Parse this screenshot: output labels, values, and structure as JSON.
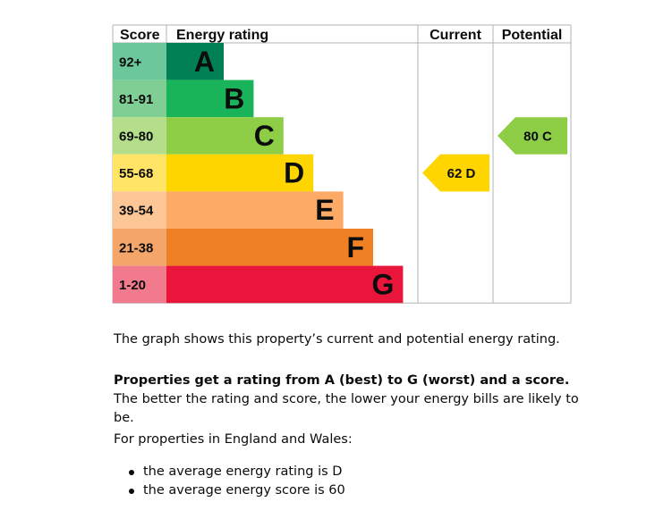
{
  "chart_data": {
    "type": "bar",
    "title": "Energy rating",
    "headers": {
      "score": "Score",
      "rating": "Energy rating",
      "current": "Current",
      "potential": "Potential"
    },
    "bands": [
      {
        "band": "A",
        "score": "92+",
        "color": "#008054",
        "score_bg": "#6cc79c",
        "text_color": "#0b0c0c"
      },
      {
        "band": "B",
        "score": "81-91",
        "color": "#19b459",
        "score_bg": "#7fcf95",
        "text_color": "#0b0c0c"
      },
      {
        "band": "C",
        "score": "69-80",
        "color": "#8dce46",
        "score_bg": "#b4de8a",
        "text_color": "#0b0c0c"
      },
      {
        "band": "D",
        "score": "55-68",
        "color": "#ffd500",
        "score_bg": "#ffe466",
        "text_color": "#0b0c0c"
      },
      {
        "band": "E",
        "score": "39-54",
        "color": "#fcaa65",
        "score_bg": "#fdc697",
        "text_color": "#0b0c0c"
      },
      {
        "band": "F",
        "score": "21-38",
        "color": "#ef8023",
        "score_bg": "#f4a66a",
        "text_color": "#0b0c0c"
      },
      {
        "band": "G",
        "score": "1-20",
        "color": "#e9153b",
        "score_bg": "#f17a8d",
        "text_color": "#0b0c0c"
      }
    ],
    "current": {
      "value": 62,
      "band": "D",
      "label": "62  D",
      "color": "#ffd500"
    },
    "potential": {
      "value": 80,
      "band": "C",
      "label": "80  C",
      "color": "#8dce46"
    }
  },
  "description": {
    "line1": "The graph shows this property’s current and potential energy rating.",
    "line2_bold": "Properties get a rating from A (best) to G (worst) and a score.",
    "line2_rest": " The better the rating and score, the lower your energy bills are likely to be.",
    "line3": "For properties in England and Wales:",
    "bullets": [
      "the average energy rating is D",
      "the average energy score is 60"
    ]
  }
}
